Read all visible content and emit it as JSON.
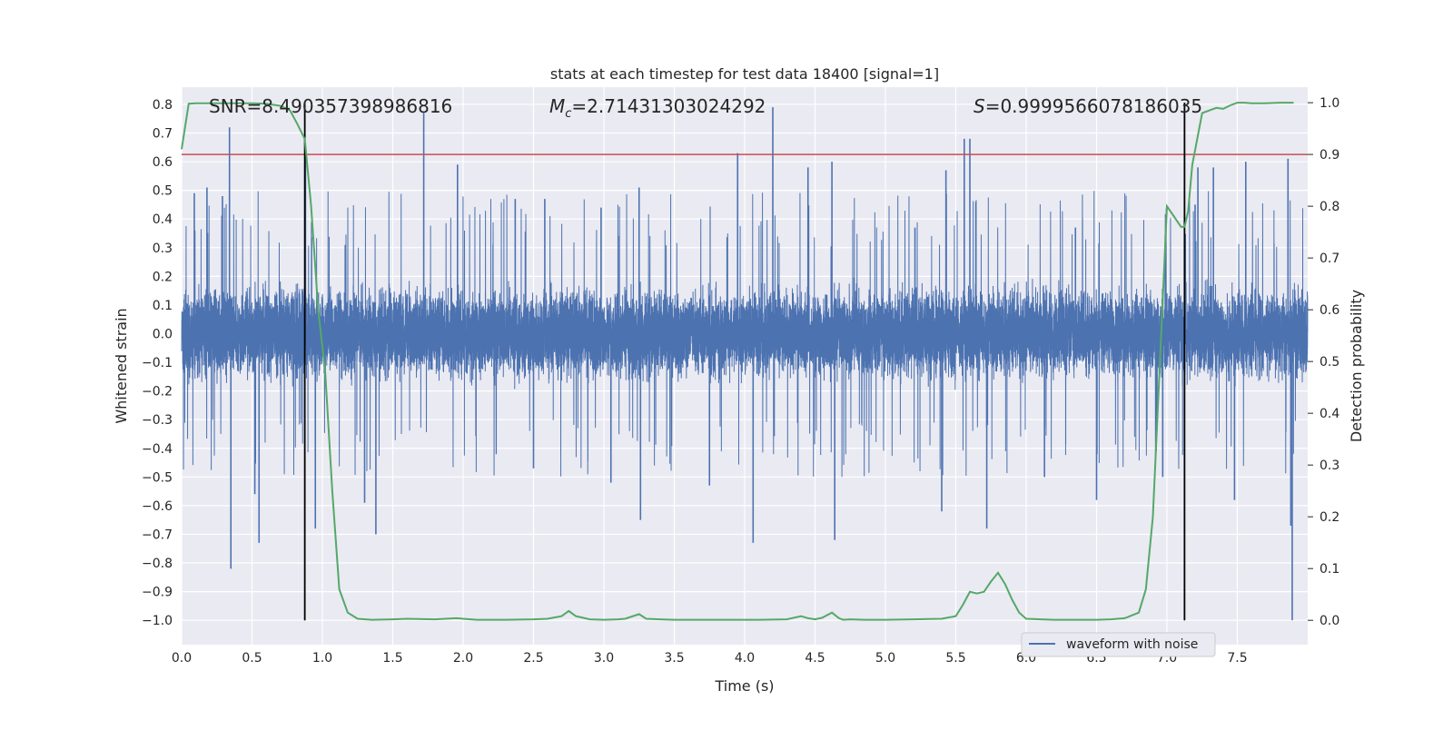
{
  "chart_data": {
    "type": "line",
    "title": "stats at each timestep for test data 18400 [signal=1]",
    "xlabel": "Time (s)",
    "ylabel_left": "Whitened strain",
    "ylabel_right": "Detection probability",
    "xlim": [
      0.0,
      8.0
    ],
    "ylim_left": [
      -1.085,
      0.86
    ],
    "ylim_right": [
      -0.047,
      1.03
    ],
    "grid": true,
    "legend_placement": "lower-right",
    "x_ticks": [
      0.0,
      0.5,
      1.0,
      1.5,
      2.0,
      2.5,
      3.0,
      3.5,
      4.0,
      4.5,
      5.0,
      5.5,
      6.0,
      6.5,
      7.0,
      7.5
    ],
    "x_tick_labels": [
      "0.0",
      "0.5",
      "1.0",
      "1.5",
      "2.0",
      "2.5",
      "3.0",
      "3.5",
      "4.0",
      "4.5",
      "5.0",
      "5.5",
      "6.0",
      "6.5",
      "7.0",
      "7.5"
    ],
    "y_left_ticks": [
      0.8,
      0.7,
      0.6,
      0.5,
      0.4,
      0.3,
      0.2,
      0.1,
      0.0,
      -0.1,
      -0.2,
      -0.3,
      -0.4,
      -0.5,
      -0.6,
      -0.7,
      -0.8,
      -0.9,
      -1.0
    ],
    "y_left_tick_labels": [
      "0.8",
      "0.7",
      "0.6",
      "0.5",
      "0.4",
      "0.3",
      "0.2",
      "0.1",
      "0.0",
      "−0.1",
      "−0.2",
      "−0.3",
      "−0.4",
      "−0.5",
      "−0.6",
      "−0.7",
      "−0.8",
      "−0.9",
      "−1.0"
    ],
    "y_right_ticks": [
      1.0,
      0.9,
      0.8,
      0.7,
      0.6,
      0.5,
      0.4,
      0.3,
      0.2,
      0.1,
      0.0
    ],
    "y_right_tick_labels": [
      "1.0",
      "0.9",
      "0.8",
      "0.7",
      "0.6",
      "0.5",
      "0.4",
      "0.3",
      "0.2",
      "0.1",
      "0.0"
    ],
    "annotations": {
      "snr": "SNR=8.490357398986816",
      "mc_symbol": "M",
      "mc_sub": "c",
      "mc_value": "=2.71431303024292",
      "s_symbol": "S",
      "s_value": "=0.9999566078186035"
    },
    "threshold": {
      "value": 0.9,
      "color": "#c44e52"
    },
    "vlines_time": [
      0.875,
      7.125
    ],
    "series": [
      {
        "name": "waveform with noise",
        "axis": "left",
        "color": "#4c72b0",
        "duration": 8.0,
        "sample_rate": 2048,
        "envelope_typical": [
          -0.3,
          0.3
        ],
        "peaks": [
          [
            0.09,
            0.49
          ],
          [
            0.18,
            0.51
          ],
          [
            0.29,
            0.48
          ],
          [
            0.34,
            0.72
          ],
          [
            0.35,
            -0.82
          ],
          [
            0.52,
            -0.56
          ],
          [
            0.55,
            -0.73
          ],
          [
            0.88,
            0.62
          ],
          [
            0.95,
            -0.68
          ],
          [
            1.3,
            -0.59
          ],
          [
            1.38,
            -0.7
          ],
          [
            1.72,
            0.77
          ],
          [
            1.96,
            0.59
          ],
          [
            2.37,
            0.47
          ],
          [
            2.5,
            -0.47
          ],
          [
            2.58,
            0.47
          ],
          [
            2.98,
            0.44
          ],
          [
            3.05,
            -0.52
          ],
          [
            3.25,
            0.51
          ],
          [
            3.26,
            -0.65
          ],
          [
            3.75,
            -0.53
          ],
          [
            3.95,
            0.63
          ],
          [
            4.06,
            -0.73
          ],
          [
            4.2,
            0.79
          ],
          [
            4.45,
            0.58
          ],
          [
            4.62,
            0.6
          ],
          [
            4.64,
            -0.72
          ],
          [
            5.21,
            0.37
          ],
          [
            5.4,
            -0.62
          ],
          [
            5.43,
            0.57
          ],
          [
            5.56,
            0.68
          ],
          [
            5.6,
            0.68
          ],
          [
            5.72,
            -0.68
          ],
          [
            6.13,
            -0.5
          ],
          [
            6.35,
            0.37
          ],
          [
            6.5,
            -0.58
          ],
          [
            6.97,
            -0.5
          ],
          [
            7.2,
            0.45
          ],
          [
            7.22,
            0.58
          ],
          [
            7.33,
            0.58
          ],
          [
            7.48,
            -0.58
          ],
          [
            7.56,
            0.6
          ],
          [
            7.86,
            0.61
          ],
          [
            7.88,
            -0.67
          ],
          [
            7.89,
            -1.0
          ]
        ]
      },
      {
        "name": "Detection probability",
        "axis": "right",
        "color": "#55a868",
        "x": [
          0.0,
          0.05,
          0.1,
          0.2,
          0.3,
          0.4,
          0.5,
          0.6,
          0.7,
          0.77,
          0.82,
          0.875,
          0.92,
          0.97,
          1.02,
          1.07,
          1.12,
          1.18,
          1.25,
          1.35,
          1.5,
          1.6,
          1.8,
          1.95,
          2.1,
          2.3,
          2.5,
          2.6,
          2.7,
          2.75,
          2.8,
          2.9,
          3.0,
          3.1,
          3.15,
          3.25,
          3.3,
          3.4,
          3.5,
          3.7,
          3.9,
          4.1,
          4.3,
          4.4,
          4.45,
          4.5,
          4.55,
          4.62,
          4.67,
          4.7,
          4.75,
          4.85,
          5.0,
          5.2,
          5.4,
          5.5,
          5.55,
          5.6,
          5.65,
          5.7,
          5.75,
          5.8,
          5.85,
          5.9,
          5.95,
          6.0,
          6.1,
          6.2,
          6.3,
          6.4,
          6.5,
          6.6,
          6.7,
          6.8,
          6.85,
          6.9,
          6.95,
          7.0,
          7.05,
          7.1,
          7.125,
          7.15,
          7.18,
          7.25,
          7.3,
          7.35,
          7.4,
          7.45,
          7.5,
          7.55,
          7.6,
          7.7,
          7.8,
          7.9
        ],
        "values": [
          0.91,
          0.998,
          0.999,
          0.999,
          0.999,
          0.999,
          0.999,
          0.998,
          0.994,
          0.985,
          0.96,
          0.93,
          0.8,
          0.6,
          0.48,
          0.25,
          0.06,
          0.015,
          0.003,
          0.001,
          0.002,
          0.003,
          0.002,
          0.004,
          0.001,
          0.001,
          0.002,
          0.003,
          0.008,
          0.018,
          0.008,
          0.002,
          0.001,
          0.002,
          0.003,
          0.012,
          0.003,
          0.002,
          0.001,
          0.001,
          0.001,
          0.001,
          0.002,
          0.008,
          0.004,
          0.002,
          0.005,
          0.015,
          0.004,
          0.001,
          0.002,
          0.001,
          0.001,
          0.002,
          0.003,
          0.008,
          0.03,
          0.055,
          0.052,
          0.055,
          0.075,
          0.092,
          0.07,
          0.04,
          0.015,
          0.003,
          0.002,
          0.001,
          0.001,
          0.001,
          0.001,
          0.002,
          0.004,
          0.015,
          0.06,
          0.2,
          0.5,
          0.8,
          0.78,
          0.76,
          0.76,
          0.79,
          0.88,
          0.98,
          0.985,
          0.99,
          0.988,
          0.995,
          1.0,
          1.0,
          0.999,
          0.999,
          1.0,
          1.0
        ]
      }
    ]
  }
}
